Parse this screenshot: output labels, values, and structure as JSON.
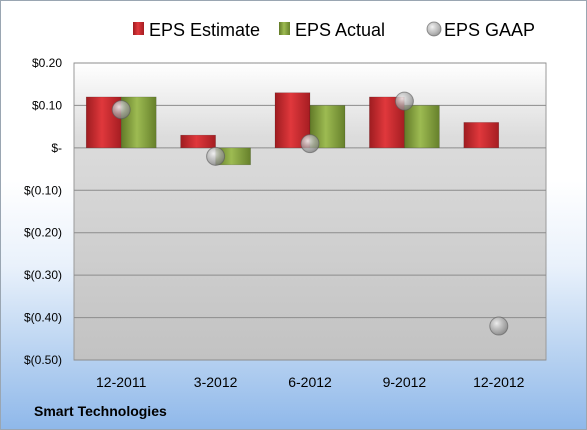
{
  "chart_data": {
    "type": "bar",
    "categories": [
      "12-2011",
      "3-2012",
      "6-2012",
      "9-2012",
      "12-2012"
    ],
    "series": [
      {
        "name": "EPS Estimate",
        "kind": "bar",
        "color": "#c0262c",
        "values": [
          0.12,
          0.03,
          0.13,
          0.12,
          0.06
        ]
      },
      {
        "name": "EPS Actual",
        "kind": "bar",
        "color": "#7f9a3a",
        "values": [
          0.12,
          -0.04,
          0.1,
          0.1,
          null
        ]
      },
      {
        "name": "EPS GAAP",
        "kind": "marker",
        "color": "#a9a9a9",
        "values": [
          0.09,
          -0.02,
          0.01,
          0.11,
          -0.42
        ]
      }
    ],
    "ylim": [
      -0.5,
      0.2
    ],
    "yticks": [
      0.2,
      0.1,
      0,
      -0.1,
      -0.2,
      -0.3,
      -0.4,
      -0.5
    ],
    "ytick_labels": [
      "$0.20",
      "$0.10",
      "$-",
      "$(0.10)",
      "$(0.20)",
      "$(0.30)",
      "$(0.40)",
      "$(0.50)"
    ],
    "grid": true,
    "legend_position": "top",
    "caption": "Smart Technologies"
  }
}
